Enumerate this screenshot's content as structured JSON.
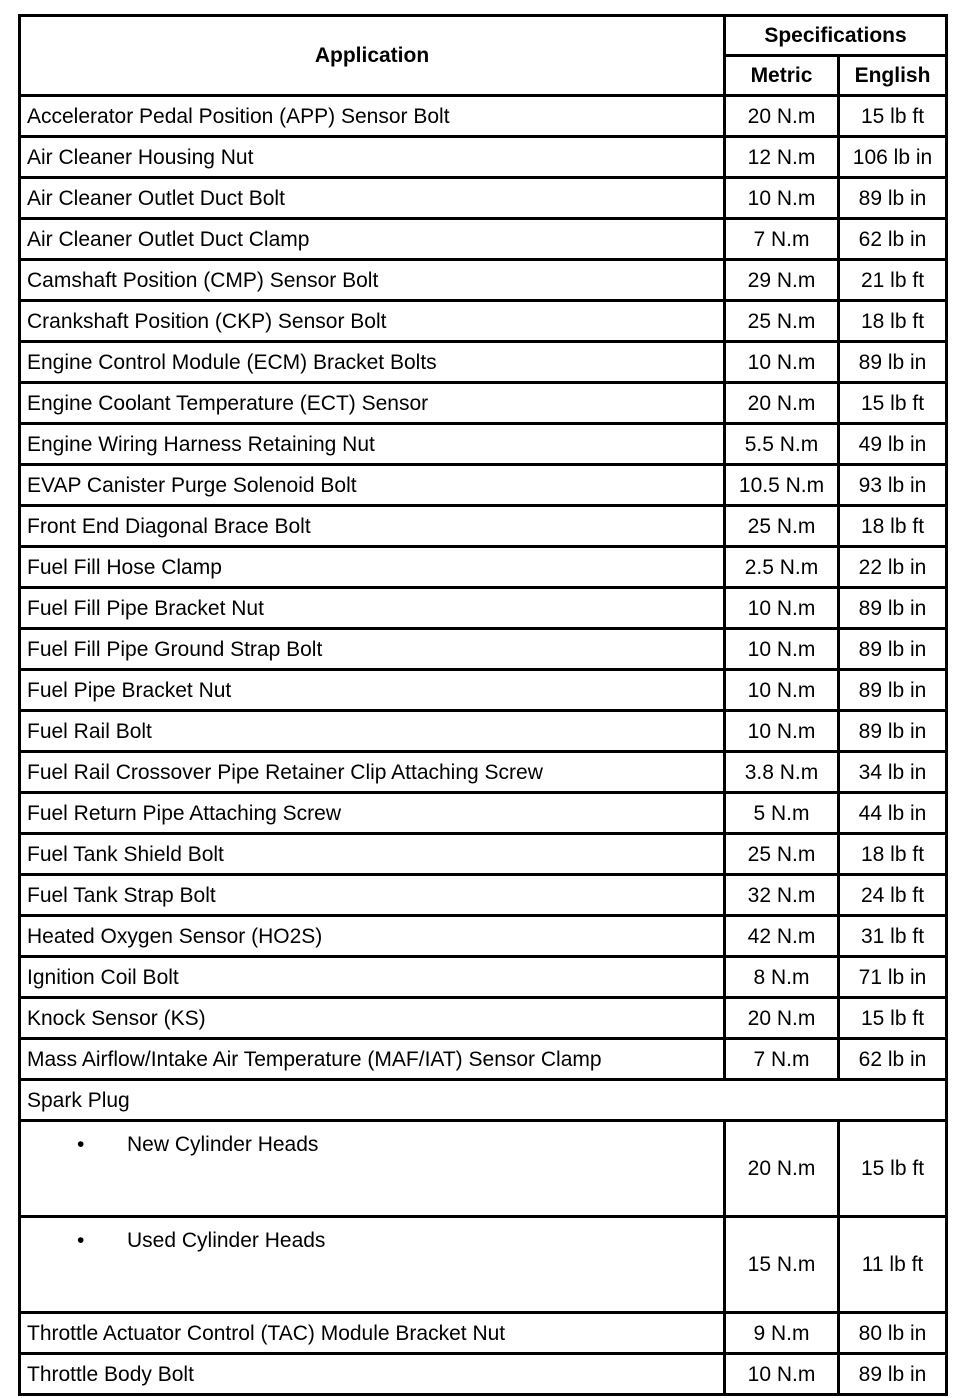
{
  "header": {
    "application": "Application",
    "specifications": "Specifications",
    "metric": "Metric",
    "english": "English"
  },
  "rows": [
    {
      "application": "Accelerator Pedal Position (APP) Sensor Bolt",
      "metric": "20 N.m",
      "english": "15 lb ft"
    },
    {
      "application": "Air Cleaner Housing Nut",
      "metric": "12 N.m",
      "english": "106 lb in"
    },
    {
      "application": "Air Cleaner Outlet Duct Bolt",
      "metric": "10 N.m",
      "english": "89 lb in"
    },
    {
      "application": "Air Cleaner Outlet Duct Clamp",
      "metric": "7 N.m",
      "english": "62 lb in"
    },
    {
      "application": "Camshaft Position (CMP) Sensor Bolt",
      "metric": "29 N.m",
      "english": "21 lb ft"
    },
    {
      "application": "Crankshaft Position (CKP) Sensor Bolt",
      "metric": "25 N.m",
      "english": "18 lb ft"
    },
    {
      "application": "Engine Control Module (ECM) Bracket Bolts",
      "metric": "10 N.m",
      "english": "89 lb in"
    },
    {
      "application": "Engine Coolant Temperature (ECT) Sensor",
      "metric": "20 N.m",
      "english": "15 lb ft"
    },
    {
      "application": "Engine Wiring Harness Retaining Nut",
      "metric": "5.5 N.m",
      "english": "49 lb in"
    },
    {
      "application": "EVAP Canister Purge Solenoid Bolt",
      "metric": "10.5 N.m",
      "english": "93 lb in"
    },
    {
      "application": "Front End Diagonal Brace Bolt",
      "metric": "25 N.m",
      "english": "18 lb ft"
    },
    {
      "application": "Fuel Fill Hose Clamp",
      "metric": "2.5 N.m",
      "english": "22 lb in"
    },
    {
      "application": "Fuel Fill Pipe Bracket Nut",
      "metric": "10 N.m",
      "english": "89 lb in"
    },
    {
      "application": "Fuel Fill Pipe Ground Strap Bolt",
      "metric": "10 N.m",
      "english": "89 lb in"
    },
    {
      "application": "Fuel Pipe Bracket Nut",
      "metric": "10 N.m",
      "english": "89 lb in"
    },
    {
      "application": "Fuel Rail Bolt",
      "metric": "10 N.m",
      "english": "89 lb in"
    },
    {
      "application": "Fuel Rail Crossover Pipe Retainer Clip Attaching Screw",
      "metric": "3.8 N.m",
      "english": "34 lb in"
    },
    {
      "application": "Fuel Return Pipe Attaching Screw",
      "metric": "5 N.m",
      "english": "44 lb in"
    },
    {
      "application": "Fuel Tank Shield Bolt",
      "metric": "25 N.m",
      "english": "18 lb ft"
    },
    {
      "application": "Fuel Tank Strap Bolt",
      "metric": "32 N.m",
      "english": "24 lb ft"
    },
    {
      "application": "Heated Oxygen Sensor (HO2S)",
      "metric": "42 N.m",
      "english": "31 lb ft"
    },
    {
      "application": "Ignition Coil Bolt",
      "metric": "8 N.m",
      "english": "71 lb in"
    },
    {
      "application": "Knock Sensor (KS)",
      "metric": "20 N.m",
      "english": "15 lb ft"
    },
    {
      "application": "Mass Airflow/Intake Air Temperature (MAF/IAT) Sensor Clamp",
      "metric": "7 N.m",
      "english": "62 lb in"
    },
    {
      "application": "Spark Plug",
      "group": true
    },
    {
      "application": "New Cylinder Heads",
      "metric": "20 N.m",
      "english": "15 lb ft",
      "bullet": "•"
    },
    {
      "application": "Used Cylinder Heads",
      "metric": "15 N.m",
      "english": "11 lb ft",
      "bullet": "•"
    },
    {
      "application": "Throttle Actuator Control (TAC) Module Bracket Nut",
      "metric": "9 N.m",
      "english": "80 lb in"
    },
    {
      "application": "Throttle Body Bolt",
      "metric": "10 N.m",
      "english": "89 lb in"
    }
  ]
}
